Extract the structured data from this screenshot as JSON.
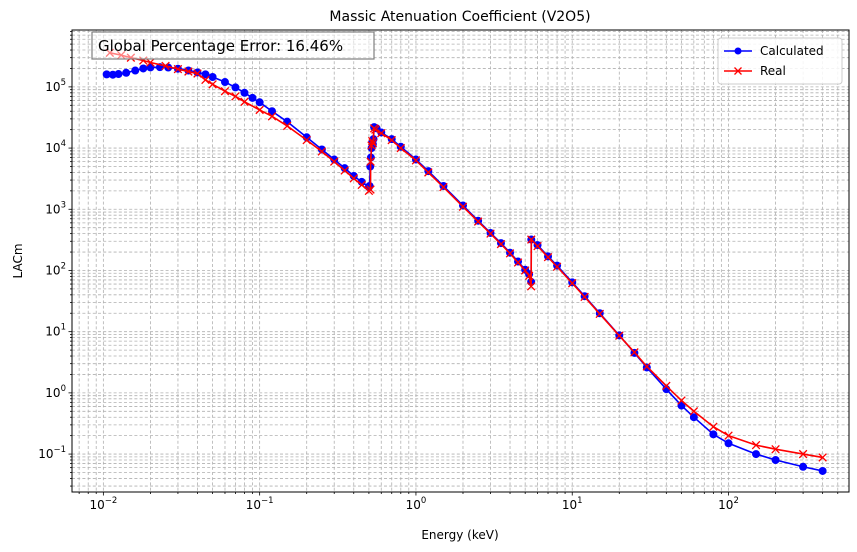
{
  "chart_data": {
    "type": "line",
    "title": "Massic Atenuation Coefficient (V2O5)",
    "xlabel": "Energy (keV)",
    "ylabel": "LACm",
    "xscale": "log",
    "yscale": "log",
    "xlim": [
      0.0063,
      590
    ],
    "ylim": [
      0.024,
      850000
    ],
    "x_ticks": [
      {
        "value": 0.01,
        "base": "10",
        "exp": "−2"
      },
      {
        "value": 0.1,
        "base": "10",
        "exp": "−1"
      },
      {
        "value": 1,
        "base": "10",
        "exp": "0"
      },
      {
        "value": 10,
        "base": "10",
        "exp": "1"
      },
      {
        "value": 100,
        "base": "10",
        "exp": "2"
      }
    ],
    "y_ticks": [
      {
        "value": 0.1,
        "base": "10",
        "exp": "−1"
      },
      {
        "value": 1,
        "base": "10",
        "exp": "0"
      },
      {
        "value": 10,
        "base": "10",
        "exp": "1"
      },
      {
        "value": 100,
        "base": "10",
        "exp": "2"
      },
      {
        "value": 1000,
        "base": "10",
        "exp": "3"
      },
      {
        "value": 10000,
        "base": "10",
        "exp": "4"
      },
      {
        "value": 100000,
        "base": "10",
        "exp": "5"
      }
    ],
    "grid": true,
    "legend_position": "top-right",
    "annotation": "Global Percentage Error: 16.46%",
    "series": [
      {
        "name": "Calculated",
        "color": "#0000ff",
        "marker": "circle",
        "points": [
          [
            0.0105,
            160000
          ],
          [
            0.0115,
            158000
          ],
          [
            0.0125,
            162000
          ],
          [
            0.014,
            170000
          ],
          [
            0.016,
            185000
          ],
          [
            0.018,
            200000
          ],
          [
            0.02,
            208000
          ],
          [
            0.023,
            210000
          ],
          [
            0.026,
            207000
          ],
          [
            0.03,
            198000
          ],
          [
            0.035,
            185000
          ],
          [
            0.04,
            172000
          ],
          [
            0.045,
            160000
          ],
          [
            0.05,
            145000
          ],
          [
            0.06,
            120000
          ],
          [
            0.07,
            98000
          ],
          [
            0.08,
            80000
          ],
          [
            0.09,
            66000
          ],
          [
            0.1,
            56000
          ],
          [
            0.12,
            40000
          ],
          [
            0.15,
            27000
          ],
          [
            0.2,
            15000
          ],
          [
            0.25,
            9500
          ],
          [
            0.3,
            6500
          ],
          [
            0.35,
            4700
          ],
          [
            0.4,
            3500
          ],
          [
            0.45,
            2800
          ],
          [
            0.5,
            2300
          ],
          [
            0.505,
            2400
          ],
          [
            0.51,
            5000
          ],
          [
            0.515,
            7000
          ],
          [
            0.52,
            10000
          ],
          [
            0.525,
            12500
          ],
          [
            0.53,
            11500
          ],
          [
            0.535,
            14000
          ],
          [
            0.54,
            22000
          ],
          [
            0.56,
            21000
          ],
          [
            0.6,
            18000
          ],
          [
            0.7,
            14000
          ],
          [
            0.8,
            10500
          ],
          [
            1.0,
            6500
          ],
          [
            1.2,
            4200
          ],
          [
            1.5,
            2400
          ],
          [
            2.0,
            1150
          ],
          [
            2.5,
            650
          ],
          [
            3.0,
            410
          ],
          [
            3.5,
            280
          ],
          [
            4.0,
            195
          ],
          [
            4.5,
            140
          ],
          [
            5.0,
            103
          ],
          [
            5.3,
            87
          ],
          [
            5.46,
            65
          ],
          [
            5.47,
            320
          ],
          [
            6.0,
            260
          ],
          [
            7.0,
            170
          ],
          [
            8.0,
            120
          ],
          [
            10.0,
            64
          ],
          [
            12.0,
            38
          ],
          [
            15.0,
            20
          ],
          [
            20.0,
            8.7
          ],
          [
            25.0,
            4.5
          ],
          [
            30.0,
            2.6
          ],
          [
            40.0,
            1.15
          ],
          [
            50.0,
            0.62
          ],
          [
            60.0,
            0.4
          ],
          [
            80.0,
            0.21
          ],
          [
            100.0,
            0.15
          ],
          [
            150.0,
            0.1
          ],
          [
            200.0,
            0.08
          ],
          [
            300.0,
            0.062
          ],
          [
            400.0,
            0.053
          ]
        ]
      },
      {
        "name": "Real",
        "color": "#ff0000",
        "marker": "x",
        "points": [
          [
            0.011,
            360000
          ],
          [
            0.013,
            330000
          ],
          [
            0.015,
            300000
          ],
          [
            0.018,
            270000
          ],
          [
            0.02,
            250000
          ],
          [
            0.025,
            220000
          ],
          [
            0.03,
            195000
          ],
          [
            0.035,
            178000
          ],
          [
            0.04,
            165000
          ],
          [
            0.045,
            130000
          ],
          [
            0.05,
            110000
          ],
          [
            0.06,
            85000
          ],
          [
            0.07,
            70000
          ],
          [
            0.08,
            57000
          ],
          [
            0.1,
            42000
          ],
          [
            0.12,
            33000
          ],
          [
            0.15,
            23000
          ],
          [
            0.2,
            13500
          ],
          [
            0.25,
            8800
          ],
          [
            0.3,
            6000
          ],
          [
            0.35,
            4300
          ],
          [
            0.4,
            3200
          ],
          [
            0.45,
            2500
          ],
          [
            0.5,
            2000
          ],
          [
            0.512,
            2100
          ],
          [
            0.513,
            6000
          ],
          [
            0.52,
            11000
          ],
          [
            0.525,
            13000
          ],
          [
            0.53,
            12000
          ],
          [
            0.54,
            21000
          ],
          [
            0.55,
            20000
          ],
          [
            0.6,
            17500
          ],
          [
            0.7,
            13500
          ],
          [
            0.8,
            10000
          ],
          [
            1.0,
            6300
          ],
          [
            1.2,
            4000
          ],
          [
            1.5,
            2300
          ],
          [
            2.0,
            1100
          ],
          [
            2.5,
            630
          ],
          [
            3.0,
            400
          ],
          [
            3.5,
            270
          ],
          [
            4.0,
            190
          ],
          [
            4.5,
            135
          ],
          [
            5.0,
            100
          ],
          [
            5.3,
            82
          ],
          [
            5.46,
            55
          ],
          [
            5.47,
            320
          ],
          [
            6.0,
            250
          ],
          [
            7.0,
            165
          ],
          [
            8.0,
            115
          ],
          [
            10.0,
            62
          ],
          [
            12.0,
            37
          ],
          [
            15.0,
            19.5
          ],
          [
            20.0,
            8.6
          ],
          [
            25.0,
            4.6
          ],
          [
            30.0,
            2.7
          ],
          [
            40.0,
            1.3
          ],
          [
            50.0,
            0.75
          ],
          [
            60.0,
            0.5
          ],
          [
            80.0,
            0.28
          ],
          [
            100.0,
            0.2
          ],
          [
            150.0,
            0.14
          ],
          [
            200.0,
            0.12
          ],
          [
            300.0,
            0.1
          ],
          [
            400.0,
            0.088
          ]
        ]
      }
    ]
  }
}
